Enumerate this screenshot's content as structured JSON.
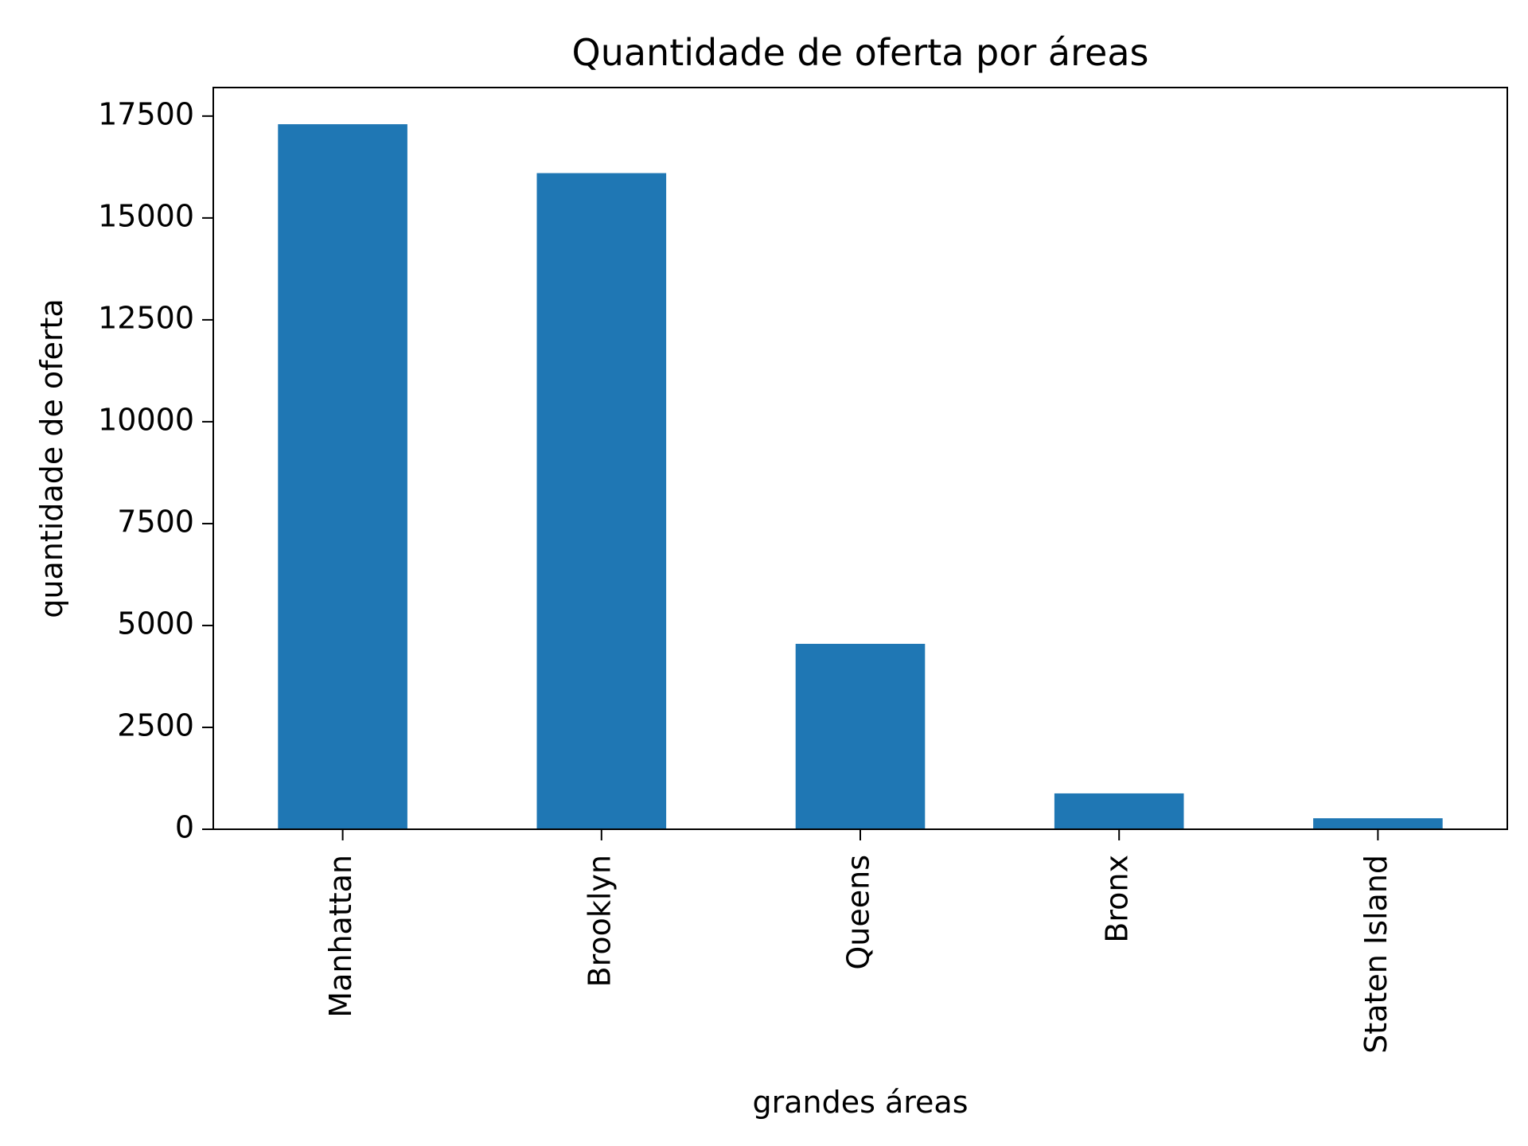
{
  "chart_data": {
    "type": "bar",
    "title": "Quantidade de oferta por áreas",
    "xlabel": "grandes áreas",
    "ylabel": "quantidade de oferta",
    "categories": [
      "Manhattan",
      "Brooklyn",
      "Queens",
      "Bronx",
      "Staten Island"
    ],
    "values": [
      17300,
      16100,
      4550,
      880,
      270
    ],
    "ylim": [
      0,
      18200
    ],
    "yticks": [
      0,
      2500,
      5000,
      7500,
      10000,
      12500,
      15000,
      17500
    ],
    "ytick_labels": [
      "0",
      "2500",
      "5000",
      "7500",
      "10000",
      "12500",
      "15000",
      "17500"
    ],
    "grid": false,
    "legend": "none",
    "colors": {
      "bar": "#1f77b4",
      "axes": "#000000",
      "background": "#ffffff"
    }
  }
}
